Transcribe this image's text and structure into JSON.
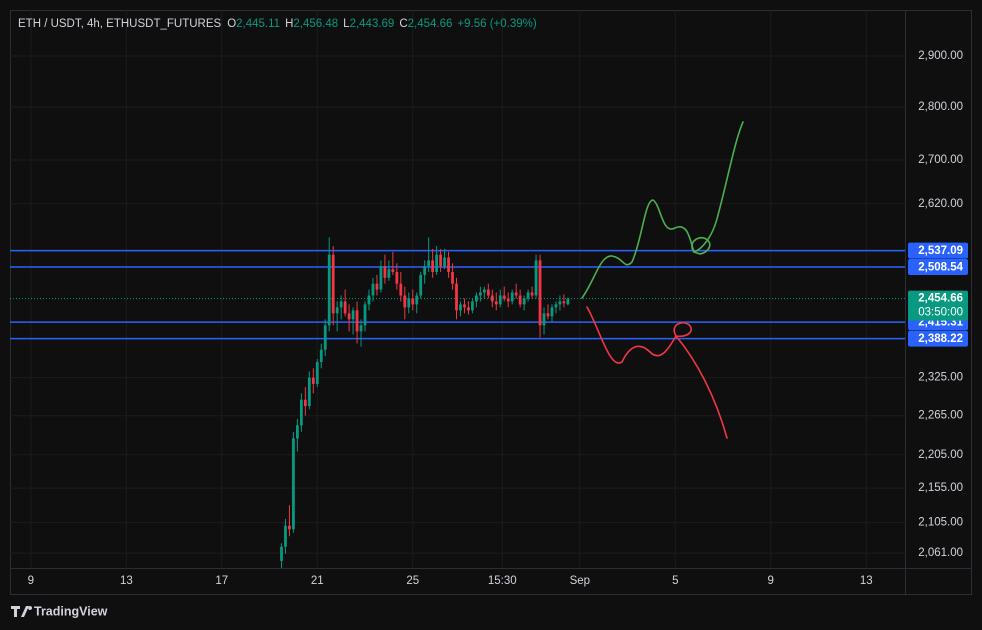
{
  "chart_data": {
    "type": "candlestick",
    "legend": {
      "symbol": "ETH / USDT, 4h, ETHUSDT_FUTURES",
      "o_label": "O",
      "o": "2,445.11",
      "h_label": "H",
      "h": "2,456.48",
      "l_label": "L",
      "l": "2,443.69",
      "c_label": "C",
      "c": "2,454.66",
      "change": "+9.56 (+0.39%)"
    },
    "brand": "TradingView",
    "log_scale": true,
    "grid": true,
    "up_color": "#089981",
    "down_color": "#f23645",
    "level_color": "#2962ff",
    "ylim": [
      2040,
      2993
    ],
    "yticks": [
      {
        "value": 2900,
        "label": "2,900.00"
      },
      {
        "value": 2800,
        "label": "2,800.00"
      },
      {
        "value": 2700,
        "label": "2,700.00"
      },
      {
        "value": 2620,
        "label": "2,620.00"
      },
      {
        "value": 2325,
        "label": "2,325.00"
      },
      {
        "value": 2265,
        "label": "2,265.00"
      },
      {
        "value": 2205,
        "label": "2,205.00"
      },
      {
        "value": 2155,
        "label": "2,155.00"
      },
      {
        "value": 2105,
        "label": "2,105.00"
      },
      {
        "value": 2061,
        "label": "2,061.00"
      }
    ],
    "xlim": [
      -5.25,
      219.75
    ],
    "xticks": [
      {
        "value": 0,
        "label": "9"
      },
      {
        "value": 24,
        "label": "13"
      },
      {
        "value": 48,
        "label": "17"
      },
      {
        "value": 72,
        "label": "21"
      },
      {
        "value": 96,
        "label": "25"
      },
      {
        "value": 118.5,
        "label": "15:30"
      },
      {
        "value": 138,
        "label": "Sep"
      },
      {
        "value": 162,
        "label": "5"
      },
      {
        "value": 186,
        "label": "9"
      },
      {
        "value": 210,
        "label": "13"
      }
    ],
    "x": [
      63,
      64,
      65,
      66,
      67,
      68,
      69,
      70,
      71,
      72,
      73,
      74,
      75,
      76,
      77,
      78,
      79,
      80,
      81,
      82,
      83,
      84,
      85,
      86,
      87,
      88,
      89,
      90,
      91,
      92,
      93,
      94,
      95,
      96,
      97,
      98,
      99,
      100,
      101,
      102,
      103,
      104,
      105,
      106,
      107,
      108,
      109,
      110,
      111,
      112,
      113,
      114,
      115,
      116,
      117,
      118,
      119,
      120,
      121,
      122,
      123,
      124,
      125,
      126,
      127,
      128,
      129,
      130,
      131,
      132,
      133,
      134,
      135
    ],
    "ohlc": [
      [
        2050,
        2075,
        2040,
        2070
      ],
      [
        2070,
        2110,
        2060,
        2100
      ],
      [
        2100,
        2130,
        2085,
        2095
      ],
      [
        2095,
        2240,
        2090,
        2230
      ],
      [
        2230,
        2260,
        2210,
        2250
      ],
      [
        2250,
        2300,
        2240,
        2290
      ],
      [
        2290,
        2310,
        2265,
        2280
      ],
      [
        2280,
        2335,
        2275,
        2325
      ],
      [
        2325,
        2340,
        2300,
        2315
      ],
      [
        2315,
        2355,
        2310,
        2350
      ],
      [
        2350,
        2380,
        2340,
        2370
      ],
      [
        2370,
        2420,
        2360,
        2410
      ],
      [
        2410,
        2560,
        2400,
        2530
      ],
      [
        2530,
        2545,
        2410,
        2430
      ],
      [
        2430,
        2450,
        2400,
        2440
      ],
      [
        2440,
        2460,
        2420,
        2450
      ],
      [
        2450,
        2470,
        2425,
        2430
      ],
      [
        2430,
        2445,
        2400,
        2420
      ],
      [
        2420,
        2440,
        2395,
        2435
      ],
      [
        2435,
        2450,
        2380,
        2400
      ],
      [
        2400,
        2420,
        2375,
        2410
      ],
      [
        2410,
        2450,
        2400,
        2445
      ],
      [
        2445,
        2470,
        2435,
        2460
      ],
      [
        2460,
        2490,
        2450,
        2480
      ],
      [
        2480,
        2495,
        2460,
        2470
      ],
      [
        2470,
        2520,
        2465,
        2510
      ],
      [
        2510,
        2530,
        2480,
        2490
      ],
      [
        2490,
        2520,
        2485,
        2505
      ],
      [
        2505,
        2535,
        2495,
        2500
      ],
      [
        2500,
        2515,
        2470,
        2480
      ],
      [
        2480,
        2500,
        2450,
        2460
      ],
      [
        2460,
        2475,
        2420,
        2440
      ],
      [
        2440,
        2465,
        2430,
        2455
      ],
      [
        2455,
        2470,
        2435,
        2445
      ],
      [
        2445,
        2465,
        2430,
        2460
      ],
      [
        2460,
        2500,
        2455,
        2495
      ],
      [
        2495,
        2520,
        2480,
        2510
      ],
      [
        2510,
        2560,
        2500,
        2520
      ],
      [
        2520,
        2540,
        2490,
        2500
      ],
      [
        2500,
        2545,
        2495,
        2530
      ],
      [
        2530,
        2540,
        2500,
        2510
      ],
      [
        2510,
        2540,
        2505,
        2525
      ],
      [
        2525,
        2535,
        2490,
        2500
      ],
      [
        2500,
        2515,
        2470,
        2480
      ],
      [
        2480,
        2490,
        2420,
        2435
      ],
      [
        2435,
        2450,
        2425,
        2445
      ],
      [
        2445,
        2455,
        2430,
        2440
      ],
      [
        2440,
        2450,
        2428,
        2435
      ],
      [
        2435,
        2455,
        2430,
        2450
      ],
      [
        2450,
        2465,
        2440,
        2460
      ],
      [
        2460,
        2475,
        2450,
        2465
      ],
      [
        2465,
        2475,
        2455,
        2470
      ],
      [
        2470,
        2480,
        2455,
        2460
      ],
      [
        2460,
        2470,
        2440,
        2450
      ],
      [
        2450,
        2465,
        2435,
        2445
      ],
      [
        2445,
        2470,
        2440,
        2460
      ],
      [
        2460,
        2475,
        2450,
        2455
      ],
      [
        2455,
        2465,
        2440,
        2450
      ],
      [
        2450,
        2470,
        2445,
        2465
      ],
      [
        2465,
        2480,
        2455,
        2460
      ],
      [
        2460,
        2470,
        2440,
        2445
      ],
      [
        2445,
        2460,
        2435,
        2455
      ],
      [
        2455,
        2470,
        2450,
        2465
      ],
      [
        2465,
        2475,
        2455,
        2460
      ],
      [
        2460,
        2530,
        2455,
        2520
      ],
      [
        2520,
        2530,
        2390,
        2410
      ],
      [
        2410,
        2440,
        2395,
        2430
      ],
      [
        2430,
        2445,
        2420,
        2425
      ],
      [
        2425,
        2445,
        2415,
        2440
      ],
      [
        2440,
        2450,
        2430,
        2445
      ],
      [
        2445,
        2460,
        2435,
        2450
      ],
      [
        2450,
        2462,
        2440,
        2447
      ],
      [
        2445.11,
        2456.48,
        2443.69,
        2454.66
      ]
    ],
    "levels": [
      {
        "value": 2537.09,
        "label": "2,537.09"
      },
      {
        "value": 2508.54,
        "label": "2,508.54"
      },
      {
        "value": 2415.31,
        "label": "2,415.31"
      },
      {
        "value": 2388.22,
        "label": "2,388.22"
      }
    ],
    "last_price": {
      "value": 2454.66,
      "label": "2,454.66",
      "countdown": "03:50:00"
    }
  }
}
